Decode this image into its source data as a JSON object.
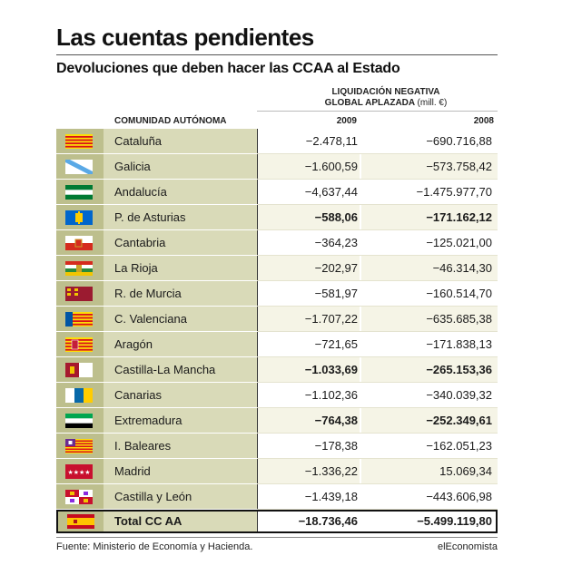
{
  "title": "Las cuentas pendientes",
  "subtitle": "Devoluciones que deben hacer las CCAA al Estado",
  "header": {
    "liquidacion_line1": "LIQUIDACIÓN NEGATIVA",
    "liquidacion_line2": "GLOBAL APLAZADA",
    "unit": "(mill. €)",
    "comunidad": "COMUNIDAD AUTÓNOMA",
    "year_2009": "2009",
    "year_2008": "2008"
  },
  "rows": [
    {
      "name": "Cataluña",
      "v2009": "−2.478,11",
      "v2008": "−690.716,88",
      "flag": "cataluna-flag"
    },
    {
      "name": "Galicia",
      "v2009": "−1.600,59",
      "v2008": "−573.758,42",
      "flag": "galicia-flag"
    },
    {
      "name": "Andalucía",
      "v2009": "−4,637,44",
      "v2008": "−1.475.977,70",
      "flag": "andalucia-flag"
    },
    {
      "name": "P. de Asturias",
      "v2009": "−588,06",
      "v2008": "−171.162,12",
      "flag": "asturias-flag"
    },
    {
      "name": "Cantabria",
      "v2009": "−364,23",
      "v2008": "−125.021,00",
      "flag": "cantabria-flag"
    },
    {
      "name": "La Rioja",
      "v2009": "−202,97",
      "v2008": "−46.314,30",
      "flag": "rioja-flag"
    },
    {
      "name": "R. de Murcia",
      "v2009": "−581,97",
      "v2008": "−160.514,70",
      "flag": "murcia-flag"
    },
    {
      "name": "C. Valenciana",
      "v2009": "−1.707,22",
      "v2008": "−635.685,38",
      "flag": "valenciana-flag"
    },
    {
      "name": "Aragón",
      "v2009": "−721,65",
      "v2008": "−171.838,13",
      "flag": "aragon-flag"
    },
    {
      "name": "Castilla-La Mancha",
      "v2009": "−1.033,69",
      "v2008": "−265.153,36",
      "flag": "castilla-la-mancha-flag"
    },
    {
      "name": "Canarias",
      "v2009": "−1.102,36",
      "v2008": "−340.039,32",
      "flag": "canarias-flag"
    },
    {
      "name": "Extremadura",
      "v2009": "−764,38",
      "v2008": "−252.349,61",
      "flag": "extremadura-flag"
    },
    {
      "name": "I. Baleares",
      "v2009": "−178,38",
      "v2008": "−162.051,23",
      "flag": "baleares-flag"
    },
    {
      "name": "Madrid",
      "v2009": "−1.336,22",
      "v2008": "15.069,34",
      "flag": "madrid-flag"
    },
    {
      "name": "Castilla y León",
      "v2009": "−1.439,18",
      "v2008": "−443.606,98",
      "flag": "castilla-leon-flag"
    }
  ],
  "total": {
    "name": "Total CC AA",
    "v2009": "−18.736,46",
    "v2008": "−5.499.119,80",
    "flag": "espana-flag"
  },
  "source": "Fuente: Ministerio de Economía y Hacienda.",
  "brand": "elEconomista",
  "colors": {
    "flag_column": "#bdbf8d",
    "name_column": "#d9dab8",
    "alt_row": "#f5f4e6"
  }
}
